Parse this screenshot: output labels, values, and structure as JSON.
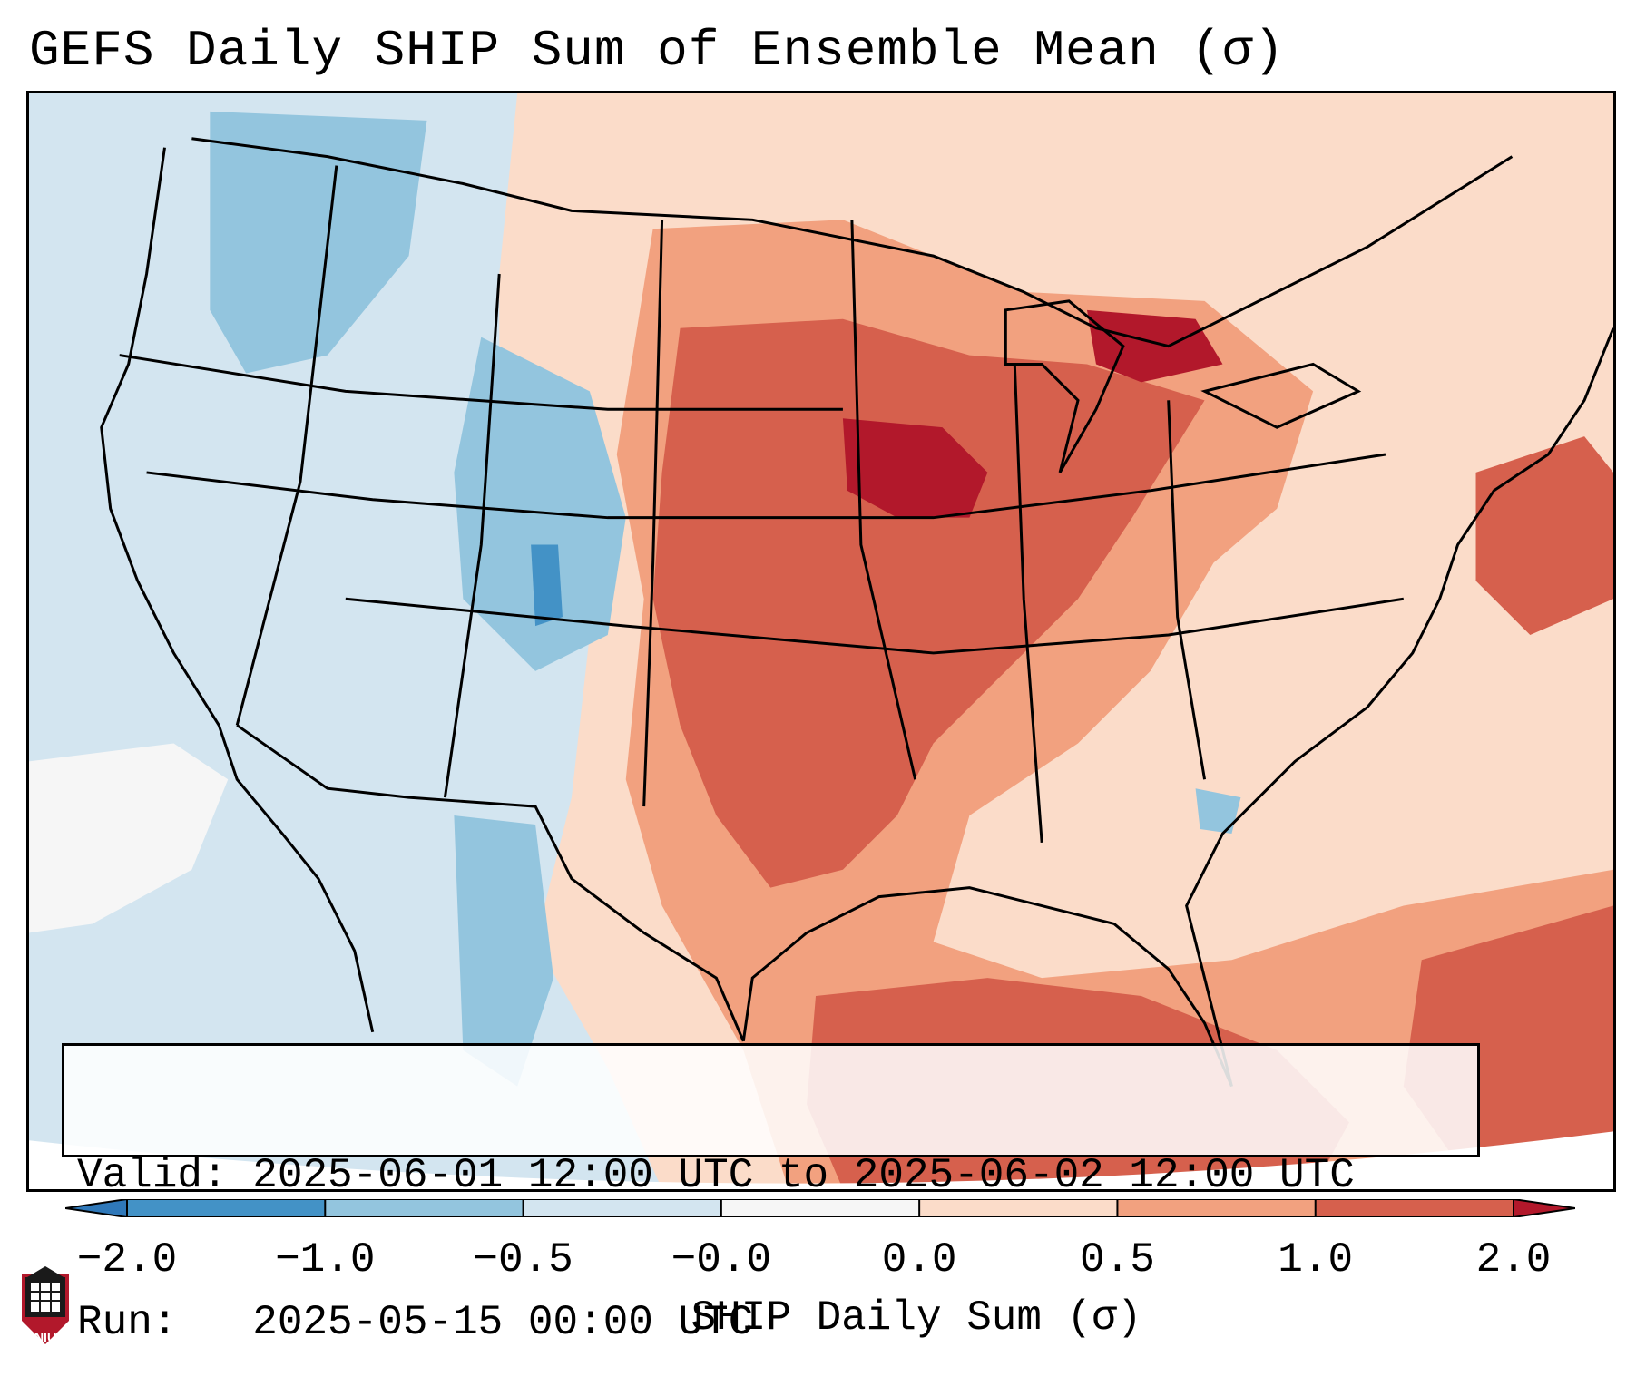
{
  "title": "GEFS Daily SHIP Sum of Ensemble Mean (σ)",
  "info": {
    "valid_label": "Valid: ",
    "valid_value": "2025-06-01 12:00 UTC to 2025-06-02 12:00 UTC",
    "run_label": "Run:   ",
    "run_value": "2025-05-15 00:00 UTC"
  },
  "colorbar": {
    "label": "SHIP Daily Sum (σ)",
    "ticks": [
      "−2.0",
      "−1.0",
      "−0.5",
      "−0.0",
      "0.0",
      "0.5",
      "1.0",
      "2.0"
    ],
    "bins": [
      {
        "range": "< -2.0",
        "color": "#2f78b9"
      },
      {
        "range": "-2.0 to -1.0",
        "color": "#4392c6"
      },
      {
        "range": "-1.0 to -0.5",
        "color": "#93c5de"
      },
      {
        "range": "-0.5 to -0.0",
        "color": "#d3e5f0"
      },
      {
        "range": "-0.0 to 0.0",
        "color": "#f6f6f6"
      },
      {
        "range": "0.0 to 0.5",
        "color": "#fbdcc9"
      },
      {
        "range": "0.5 to 1.0",
        "color": "#f2a17f"
      },
      {
        "range": "1.0 to 2.0",
        "color": "#d6604d"
      },
      {
        "range": "> 2.0",
        "color": "#b2182b"
      }
    ]
  },
  "logo": {
    "text": "NIU"
  }
}
